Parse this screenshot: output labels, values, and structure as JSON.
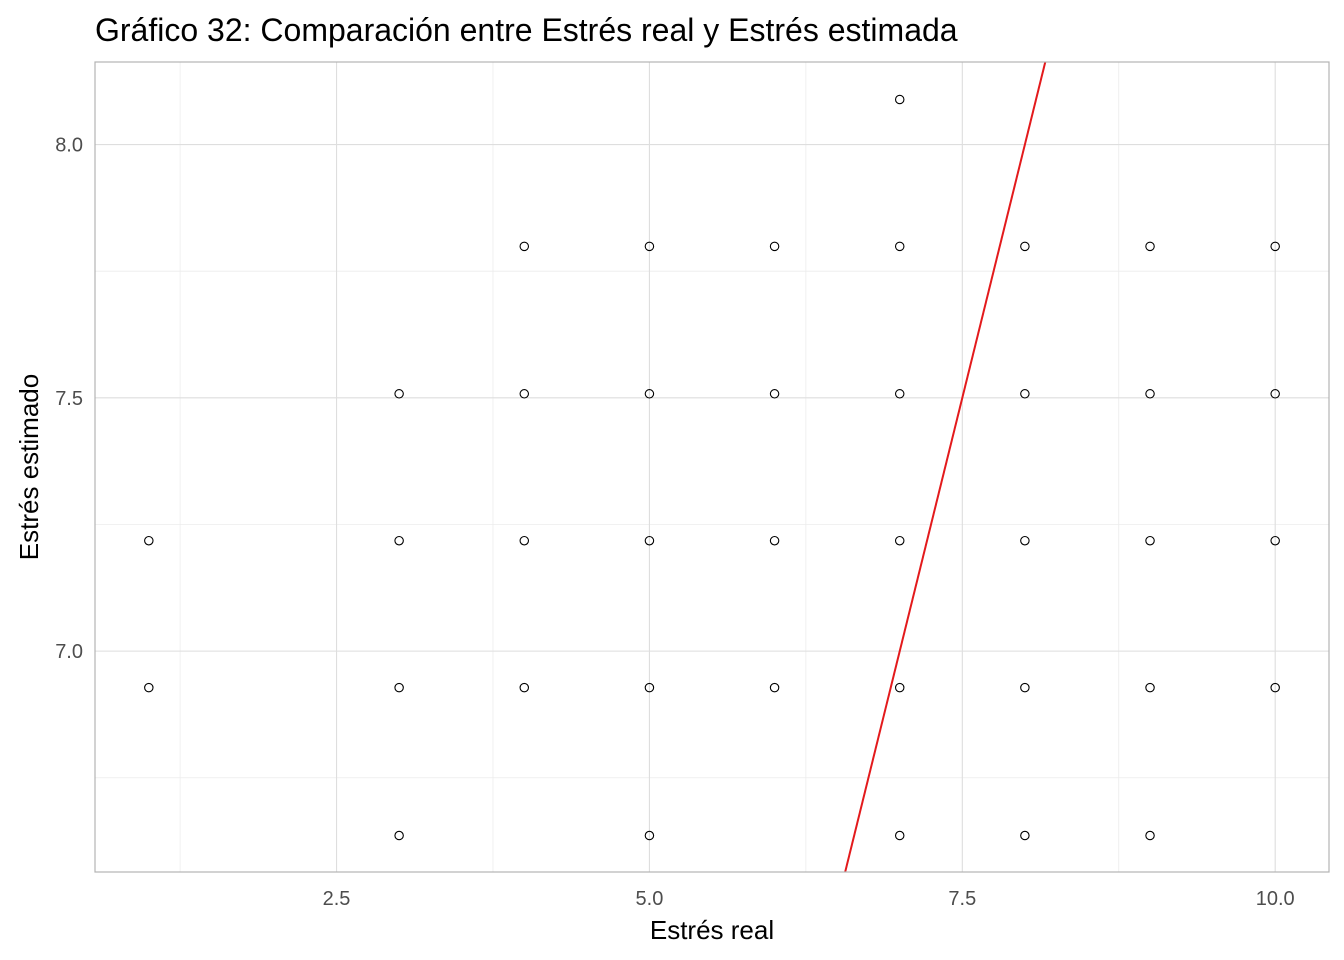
{
  "chart_data": {
    "type": "scatter",
    "title": "Gráfico 32: Comparación entre Estrés real y Estrés estimada",
    "xlabel": "Estrés real",
    "ylabel": "Estrés estimado",
    "xlim": [
      0.57,
      10.43
    ],
    "ylim": [
      6.564,
      8.163
    ],
    "x_ticks": [
      2.5,
      5.0,
      7.5,
      10.0
    ],
    "x_tick_labels": [
      "2.5",
      "5.0",
      "7.5",
      "10.0"
    ],
    "y_ticks": [
      7.0,
      7.5,
      8.0
    ],
    "y_tick_labels": [
      "7.0",
      "7.5",
      "8.0"
    ],
    "grid": true,
    "reference_line": {
      "slope": 1,
      "intercept": 0,
      "color": "#e31a1c"
    },
    "points": [
      {
        "x": 1,
        "y": 7.218
      },
      {
        "x": 1,
        "y": 6.928
      },
      {
        "x": 3,
        "y": 7.508
      },
      {
        "x": 3,
        "y": 7.218
      },
      {
        "x": 3,
        "y": 6.928
      },
      {
        "x": 3,
        "y": 6.636
      },
      {
        "x": 4,
        "y": 7.799
      },
      {
        "x": 4,
        "y": 7.508
      },
      {
        "x": 4,
        "y": 7.218
      },
      {
        "x": 4,
        "y": 6.928
      },
      {
        "x": 5,
        "y": 7.799
      },
      {
        "x": 5,
        "y": 7.508
      },
      {
        "x": 5,
        "y": 7.218
      },
      {
        "x": 5,
        "y": 6.928
      },
      {
        "x": 5,
        "y": 6.636
      },
      {
        "x": 6,
        "y": 7.799
      },
      {
        "x": 6,
        "y": 7.508
      },
      {
        "x": 6,
        "y": 7.218
      },
      {
        "x": 6,
        "y": 6.928
      },
      {
        "x": 7,
        "y": 8.089
      },
      {
        "x": 7,
        "y": 7.799
      },
      {
        "x": 7,
        "y": 7.508
      },
      {
        "x": 7,
        "y": 7.218
      },
      {
        "x": 7,
        "y": 6.928
      },
      {
        "x": 7,
        "y": 6.636
      },
      {
        "x": 8,
        "y": 7.799
      },
      {
        "x": 8,
        "y": 7.508
      },
      {
        "x": 8,
        "y": 7.218
      },
      {
        "x": 8,
        "y": 6.928
      },
      {
        "x": 8,
        "y": 6.636
      },
      {
        "x": 9,
        "y": 7.799
      },
      {
        "x": 9,
        "y": 7.508
      },
      {
        "x": 9,
        "y": 7.218
      },
      {
        "x": 9,
        "y": 6.928
      },
      {
        "x": 9,
        "y": 6.636
      },
      {
        "x": 10,
        "y": 7.799
      },
      {
        "x": 10,
        "y": 7.508
      },
      {
        "x": 10,
        "y": 7.218
      },
      {
        "x": 10,
        "y": 6.928
      }
    ]
  }
}
